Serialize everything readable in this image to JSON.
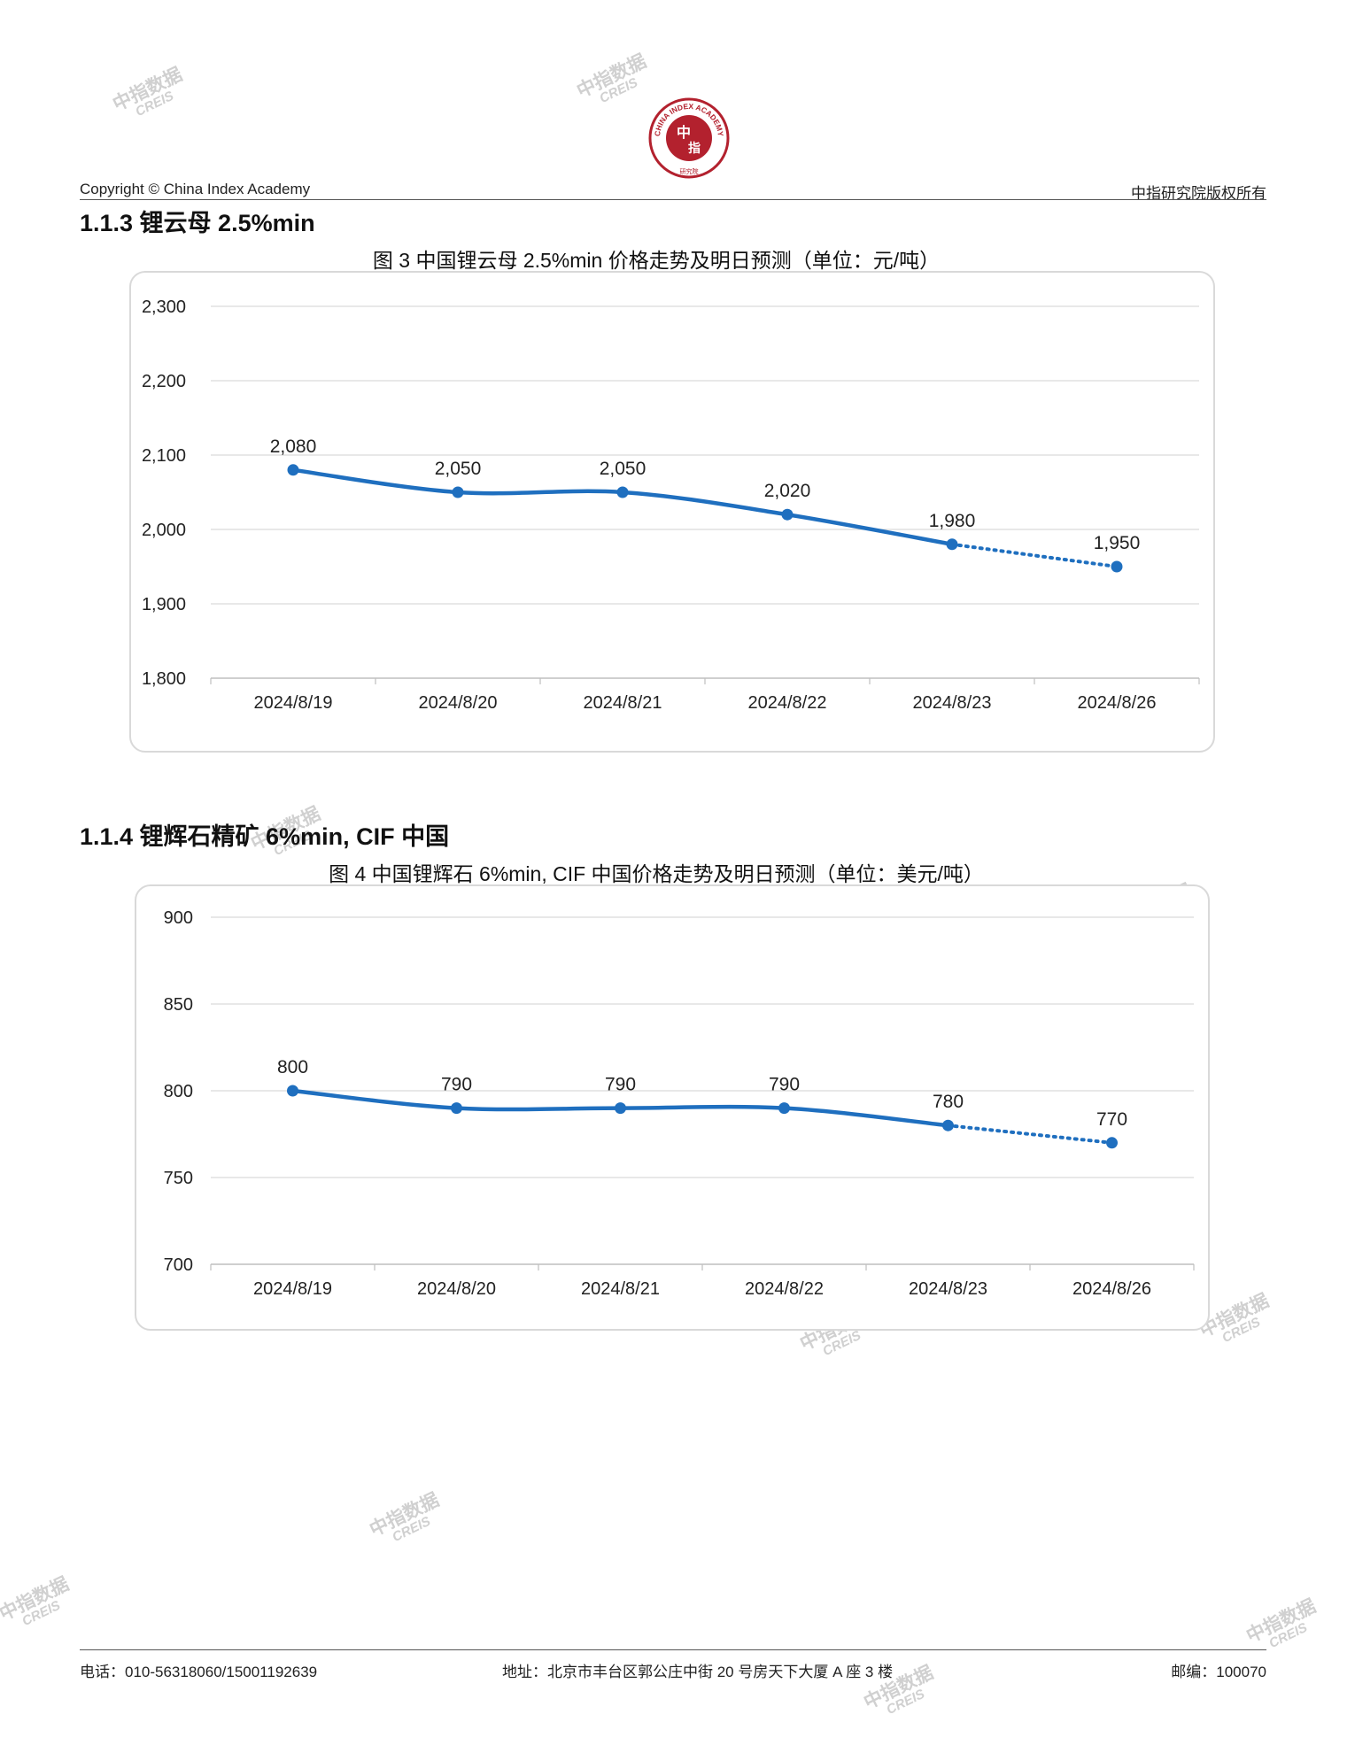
{
  "header": {
    "copyright": "Copyright © China Index Academy",
    "rights": "中指研究院版权所有",
    "logo_center_top": "中",
    "logo_center_bottom": "指",
    "logo_ring_text": "CHINA INDEX ACADEMY",
    "logo_bottom_text": "研究院"
  },
  "watermark": {
    "cn": "中指数据",
    "en": "CREIS"
  },
  "sections": [
    {
      "title": "1.1.3 锂云母 2.5%min",
      "figure_title": "图 3 中国锂云母 2.5%min 价格走势及明日预测（单位：元/吨）"
    },
    {
      "title": "1.1.4 锂辉石精矿 6%min, CIF 中国",
      "figure_title": "图 4 中国锂辉石 6%min, CIF 中国价格走势及明日预测（单位：美元/吨）"
    }
  ],
  "chart_data": [
    {
      "type": "line",
      "categories": [
        "2024/8/19",
        "2024/8/20",
        "2024/8/21",
        "2024/8/22",
        "2024/8/23",
        "2024/8/26"
      ],
      "series": [
        {
          "values": [
            2080,
            2050,
            2050,
            2020,
            1980,
            1950
          ],
          "color": "#1f6fbf"
        }
      ],
      "value_labels": [
        "2,080",
        "2,050",
        "2,050",
        "2,020",
        "1,980",
        "1,950"
      ],
      "forecast_from_index": 4,
      "ylim": [
        1800,
        2300
      ],
      "yticks": [
        1800,
        1900,
        2000,
        2100,
        2200,
        2300
      ],
      "ytick_labels": [
        "1,800",
        "1,900",
        "2,000",
        "2,100",
        "2,200",
        "2,300"
      ],
      "grid": true,
      "legend": "none"
    },
    {
      "type": "line",
      "categories": [
        "2024/8/19",
        "2024/8/20",
        "2024/8/21",
        "2024/8/22",
        "2024/8/23",
        "2024/8/26"
      ],
      "series": [
        {
          "values": [
            800,
            790,
            790,
            790,
            780,
            770
          ],
          "color": "#1f6fbf"
        }
      ],
      "value_labels": [
        "800",
        "790",
        "790",
        "790",
        "780",
        "770"
      ],
      "forecast_from_index": 4,
      "ylim": [
        700,
        900
      ],
      "yticks": [
        700,
        750,
        800,
        850,
        900
      ],
      "ytick_labels": [
        "700",
        "750",
        "800",
        "850",
        "900"
      ],
      "grid": true,
      "legend": "none"
    }
  ],
  "footer": {
    "phone": "电话：010-56318060/15001192639",
    "address": "地址：北京市丰台区郭公庄中街 20 号房天下大厦 A 座 3 楼",
    "postcode": "邮编：100070"
  }
}
